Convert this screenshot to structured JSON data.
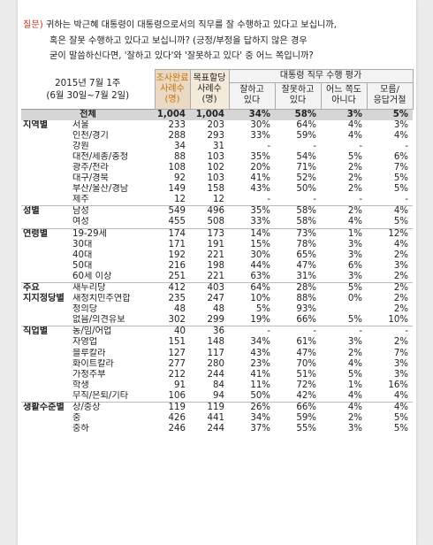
{
  "question": {
    "label": "질문)",
    "line1": " 귀하는 박근혜 대통령이 대통령으로서의 직무를 잘 수행하고 있다고 보십니까,",
    "line2": "혹은 잘못 수행하고 있다고 보십니까? (긍정/부정을 답하지 않은 경우",
    "line3": "굳이 말씀하신다면, '잘하고 있다'와 '잘못하고 있다' 중 어느 쪽입니까?"
  },
  "header": {
    "period_line1": "2015년 7월 1주",
    "period_line2": "(6월 30일~7월 2일)",
    "sample_title": "조사완료",
    "sample_sub": "사례수",
    "sample_unit": "(명)",
    "target_title": "목표할당",
    "target_sub": "사례수",
    "target_unit": "(명)",
    "eval_title": "대통령 직무 수행 평가",
    "col_good": "잘하고\n있다",
    "col_bad": "잘못하고\n있다",
    "col_neither": "어느 쪽도\n아니다",
    "col_dk": "모름/\n응답거절"
  },
  "total": {
    "label": "전체",
    "sample": "1,004",
    "target": "1,004",
    "good": "34%",
    "bad": "58%",
    "neither": "3%",
    "dk": "5%"
  },
  "groups": [
    {
      "name": "지역별",
      "rows": [
        {
          "label": "서울",
          "sample": "233",
          "target": "203",
          "good": "30%",
          "bad": "64%",
          "neither": "4%",
          "dk": "3%"
        },
        {
          "label": "인천/경기",
          "sample": "288",
          "target": "293",
          "good": "33%",
          "bad": "59%",
          "neither": "4%",
          "dk": "4%"
        },
        {
          "label": "강원",
          "sample": "34",
          "target": "31",
          "good": "-",
          "bad": "-",
          "neither": "-",
          "dk": "-"
        },
        {
          "label": "대전/세종/충청",
          "sample": "88",
          "target": "103",
          "good": "35%",
          "bad": "54%",
          "neither": "5%",
          "dk": "6%"
        },
        {
          "label": "광주/전라",
          "sample": "108",
          "target": "102",
          "good": "20%",
          "bad": "71%",
          "neither": "2%",
          "dk": "7%"
        },
        {
          "label": "대구/경북",
          "sample": "92",
          "target": "103",
          "good": "41%",
          "bad": "52%",
          "neither": "2%",
          "dk": "5%"
        },
        {
          "label": "부산/울산/경남",
          "sample": "149",
          "target": "158",
          "good": "43%",
          "bad": "50%",
          "neither": "2%",
          "dk": "5%"
        },
        {
          "label": "제주",
          "sample": "12",
          "target": "12",
          "good": "-",
          "bad": "-",
          "neither": "-",
          "dk": "-"
        }
      ]
    },
    {
      "name": "성별",
      "rows": [
        {
          "label": "남성",
          "sample": "549",
          "target": "496",
          "good": "35%",
          "bad": "58%",
          "neither": "2%",
          "dk": "4%"
        },
        {
          "label": "여성",
          "sample": "455",
          "target": "508",
          "good": "33%",
          "bad": "58%",
          "neither": "4%",
          "dk": "5%"
        }
      ]
    },
    {
      "name": "연령별",
      "rows": [
        {
          "label": "19-29세",
          "sample": "174",
          "target": "173",
          "good": "14%",
          "bad": "73%",
          "neither": "1%",
          "dk": "12%"
        },
        {
          "label": "30대",
          "sample": "171",
          "target": "191",
          "good": "15%",
          "bad": "78%",
          "neither": "3%",
          "dk": "4%"
        },
        {
          "label": "40대",
          "sample": "192",
          "target": "221",
          "good": "30%",
          "bad": "65%",
          "neither": "3%",
          "dk": "2%"
        },
        {
          "label": "50대",
          "sample": "216",
          "target": "198",
          "good": "44%",
          "bad": "47%",
          "neither": "6%",
          "dk": "3%"
        },
        {
          "label": "60세 이상",
          "sample": "251",
          "target": "221",
          "good": "63%",
          "bad": "31%",
          "neither": "3%",
          "dk": "2%"
        }
      ]
    },
    {
      "name": "주요\n지지정당별",
      "rows": [
        {
          "label": "새누리당",
          "sample": "412",
          "target": "403",
          "good": "64%",
          "bad": "28%",
          "neither": "5%",
          "dk": "2%"
        },
        {
          "label": "새정치민주연합",
          "sample": "235",
          "target": "247",
          "good": "10%",
          "bad": "88%",
          "neither": "0%",
          "dk": "2%"
        },
        {
          "label": "정의당",
          "sample": "48",
          "target": "48",
          "good": "5%",
          "bad": "93%",
          "neither": "",
          "dk": "2%"
        },
        {
          "label": "없음/의견유보",
          "sample": "302",
          "target": "299",
          "good": "19%",
          "bad": "66%",
          "neither": "5%",
          "dk": "10%"
        }
      ]
    },
    {
      "name": "직업별",
      "rows": [
        {
          "label": "농/임/어업",
          "sample": "40",
          "target": "36",
          "good": "-",
          "bad": "-",
          "neither": "-",
          "dk": "-"
        },
        {
          "label": "자영업",
          "sample": "151",
          "target": "148",
          "good": "34%",
          "bad": "61%",
          "neither": "3%",
          "dk": "2%"
        },
        {
          "label": "블루칼라",
          "sample": "127",
          "target": "117",
          "good": "43%",
          "bad": "47%",
          "neither": "2%",
          "dk": "7%"
        },
        {
          "label": "화이트칼라",
          "sample": "277",
          "target": "280",
          "good": "23%",
          "bad": "70%",
          "neither": "4%",
          "dk": "3%"
        },
        {
          "label": "가정주부",
          "sample": "212",
          "target": "244",
          "good": "41%",
          "bad": "51%",
          "neither": "5%",
          "dk": "3%"
        },
        {
          "label": "학생",
          "sample": "91",
          "target": "84",
          "good": "11%",
          "bad": "72%",
          "neither": "1%",
          "dk": "16%"
        },
        {
          "label": "무직/은퇴/기타",
          "sample": "106",
          "target": "94",
          "good": "50%",
          "bad": "42%",
          "neither": "4%",
          "dk": "4%"
        }
      ]
    },
    {
      "name": "생활수준별",
      "rows": [
        {
          "label": "상/중상",
          "sample": "119",
          "target": "119",
          "good": "26%",
          "bad": "66%",
          "neither": "4%",
          "dk": "4%"
        },
        {
          "label": "중",
          "sample": "426",
          "target": "441",
          "good": "34%",
          "bad": "59%",
          "neither": "2%",
          "dk": "5%"
        },
        {
          "label": "중하",
          "sample": "246",
          "target": "244",
          "good": "37%",
          "bad": "55%",
          "neither": "3%",
          "dk": "5%"
        }
      ]
    }
  ],
  "colors": {
    "question_label": "#c0392b",
    "total_bg": "#d6d6d6",
    "sample_header_bg": "#ead9c4",
    "target_header_bg": "#f3ead9"
  }
}
